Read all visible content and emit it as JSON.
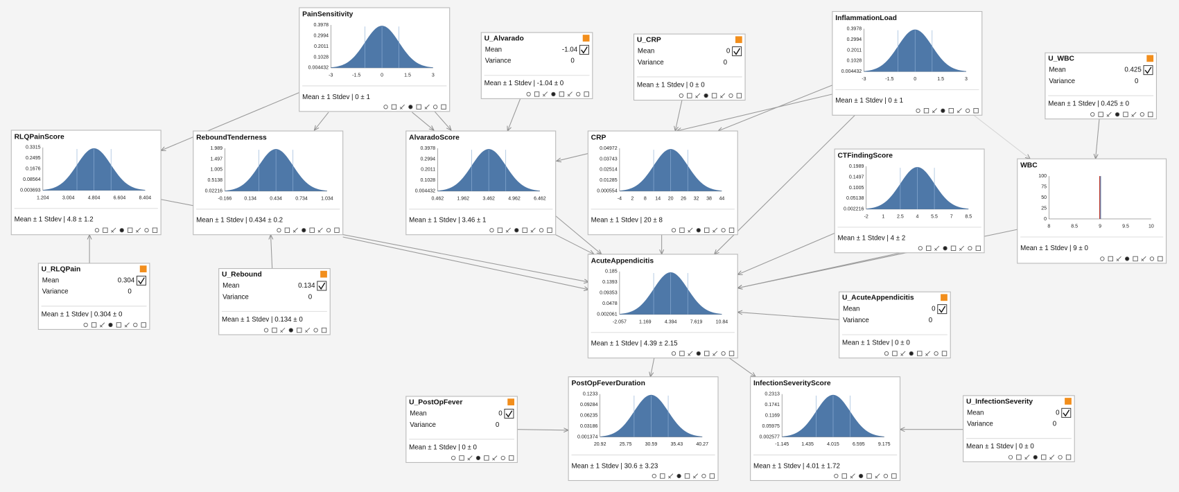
{
  "nodes": [
    {
      "title": "PainSensitivity",
      "yticks": [
        "0.3978",
        "0.2994",
        "0.2011",
        "0.1028",
        "0.004432"
      ],
      "xticks": [
        "-3",
        "-1.5",
        "0",
        "1.5",
        "3"
      ],
      "summary": "Mean ± 1 Stdev | 0 ± 1"
    },
    {
      "title": "InflammationLoad",
      "yticks": [
        "0.3978",
        "0.2994",
        "0.2011",
        "0.1028",
        "0.004432"
      ],
      "xticks": [
        "-3",
        "-1.5",
        "0",
        "1.5",
        "3"
      ],
      "summary": "Mean ± 1 Stdev | 0 ± 1"
    },
    {
      "title": "RLQPainScore",
      "yticks": [
        "0.3315",
        "0.2495",
        "0.1676",
        "0.08564",
        "0.003693"
      ],
      "xticks": [
        "1.204",
        "3.004",
        "4.804",
        "6.604",
        "8.404"
      ],
      "summary": "Mean ± 1 Stdev | 4.8 ± 1.2"
    },
    {
      "title": "ReboundTenderness",
      "yticks": [
        "1.989",
        "1.497",
        "1.005",
        "0.5138",
        "0.02216"
      ],
      "xticks": [
        "-0.166",
        "0.134",
        "0.434",
        "0.734",
        "1.034"
      ],
      "summary": "Mean ± 1 Stdev | 0.434 ± 0.2"
    },
    {
      "title": "AlvaradoScore",
      "yticks": [
        "0.3978",
        "0.2994",
        "0.2011",
        "0.1028",
        "0.004432"
      ],
      "xticks": [
        "0.462",
        "1.962",
        "3.462",
        "4.962",
        "6.462"
      ],
      "summary": "Mean ± 1 Stdev | 3.46 ± 1"
    },
    {
      "title": "CRP",
      "yticks": [
        "0.04972",
        "0.03743",
        "0.02514",
        "0.01285",
        "0.000554"
      ],
      "xticks": [
        "-4",
        "2",
        "8",
        "14",
        "20",
        "26",
        "32",
        "38",
        "44"
      ],
      "summary": "Mean ± 1 Stdev | 20 ± 8"
    },
    {
      "title": "CTFindingScore",
      "yticks": [
        "0.1989",
        "0.1497",
        "0.1005",
        "0.05138",
        "0.002216"
      ],
      "xticks": [
        "-2",
        "1",
        "2.5",
        "4",
        "5.5",
        "7",
        "8.5"
      ],
      "summary": "Mean ± 1 Stdev | 4 ± 2"
    },
    {
      "title": "WBC",
      "yticks": [
        "100",
        "75",
        "50",
        "25",
        "0"
      ],
      "xticks": [
        "8",
        "8.5",
        "9",
        "9.5",
        "10"
      ],
      "summary": "Mean ± 1 Stdev | 9 ± 0"
    },
    {
      "title": "AcuteAppendicitis",
      "yticks": [
        "0.185",
        "0.1393",
        "0.09353",
        "0.0478",
        "0.002061"
      ],
      "xticks": [
        "-2.057",
        "1.169",
        "4.394",
        "7.619",
        "10.84"
      ],
      "summary": "Mean ± 1 Stdev | 4.39 ± 2.15"
    },
    {
      "title": "PostOpFeverDuration",
      "yticks": [
        "0.1233",
        "0.09284",
        "0.06235",
        "0.03186",
        "0.001374"
      ],
      "xticks": [
        "20.92",
        "25.75",
        "30.59",
        "35.43",
        "40.27"
      ],
      "summary": "Mean ± 1 Stdev | 30.6 ± 3.23"
    },
    {
      "title": "InfectionSeverityScore",
      "yticks": [
        "0.2313",
        "0.1741",
        "0.1169",
        "0.05975",
        "0.002577"
      ],
      "xticks": [
        "-1.145",
        "1.435",
        "4.015",
        "6.595",
        "9.175"
      ],
      "summary": "Mean ± 1 Stdev | 4.01 ± 1.72"
    }
  ],
  "controls": [
    {
      "title": "U_Alvarado",
      "mean_label": "Mean",
      "mean": "-1.04",
      "variance_label": "Variance",
      "variance": "0",
      "summary": "Mean ± 1 Stdev | -1.04 ± 0"
    },
    {
      "title": "U_CRP",
      "mean_label": "Mean",
      "mean": "0",
      "variance_label": "Variance",
      "variance": "0",
      "summary": "Mean ± 1 Stdev | 0 ± 0"
    },
    {
      "title": "U_WBC",
      "mean_label": "Mean",
      "mean": "0.425",
      "variance_label": "Variance",
      "variance": "0",
      "summary": "Mean ± 1 Stdev | 0.425 ± 0"
    },
    {
      "title": "U_RLQPain",
      "mean_label": "Mean",
      "mean": "0.304",
      "variance_label": "Variance",
      "variance": "0",
      "summary": "Mean ± 1 Stdev | 0.304 ± 0"
    },
    {
      "title": "U_Rebound",
      "mean_label": "Mean",
      "mean": "0.134",
      "variance_label": "Variance",
      "variance": "0",
      "summary": "Mean ± 1 Stdev | 0.134 ± 0"
    },
    {
      "title": "U_AcuteAppendicitis",
      "mean_label": "Mean",
      "mean": "0",
      "variance_label": "Variance",
      "variance": "0",
      "summary": "Mean ± 1 Stdev | 0 ± 0"
    },
    {
      "title": "U_PostOpFever",
      "mean_label": "Mean",
      "mean": "0",
      "variance_label": "Variance",
      "variance": "0",
      "summary": "Mean ± 1 Stdev | 0 ± 0"
    },
    {
      "title": "U_InfectionSeverity",
      "mean_label": "Mean",
      "mean": "0",
      "variance_label": "Variance",
      "variance": "0",
      "summary": "Mean ± 1 Stdev | 0 ± 0"
    }
  ]
}
